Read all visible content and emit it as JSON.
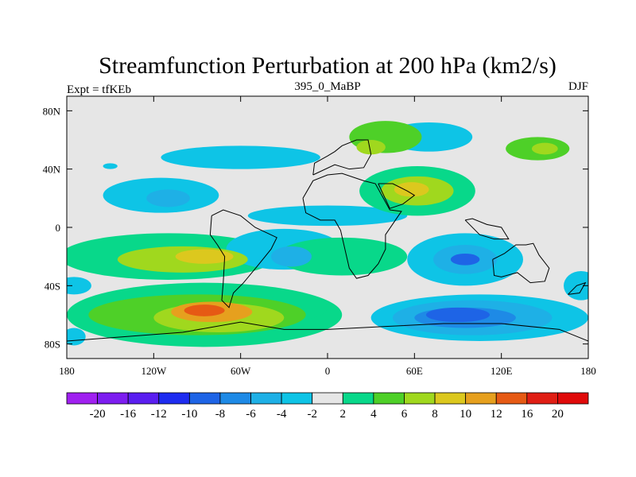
{
  "chart_data": {
    "type": "heatmap",
    "title": "Streamfunction Perturbation at 200 hPa (km2/s)",
    "left_label": "Expt = tfKEb",
    "center_label": "395_0_MaBP",
    "right_label": "DJF",
    "x_ticks": [
      {
        "value": -180,
        "label": "180"
      },
      {
        "value": -120,
        "label": "120W"
      },
      {
        "value": -60,
        "label": "60W"
      },
      {
        "value": 0,
        "label": "0"
      },
      {
        "value": 60,
        "label": "60E"
      },
      {
        "value": 120,
        "label": "120E"
      },
      {
        "value": 180,
        "label": "180"
      }
    ],
    "y_ticks": [
      {
        "value": 80,
        "label": "80N"
      },
      {
        "value": 40,
        "label": "40N"
      },
      {
        "value": 0,
        "label": "0"
      },
      {
        "value": -40,
        "label": "40S"
      },
      {
        "value": -80,
        "label": "80S"
      }
    ],
    "xlim": [
      -180,
      180
    ],
    "ylim": [
      -90,
      90
    ],
    "colorbar": {
      "labels": [
        "-20",
        "-16",
        "-12",
        "-10",
        "-8",
        "-6",
        "-4",
        "-2",
        "2",
        "4",
        "6",
        "8",
        "10",
        "12",
        "16",
        "20"
      ],
      "colors": [
        "#a020f0",
        "#7d1df0",
        "#5a1ef0",
        "#1e2cf0",
        "#1e64e6",
        "#1e8ae6",
        "#1eb0e6",
        "#0ec4e6",
        "#e6e6e6",
        "#08d88a",
        "#4ed028",
        "#a0d81e",
        "#dcc81e",
        "#e6a01e",
        "#e65a14",
        "#e01e14",
        "#e00a0a"
      ]
    },
    "features": [
      {
        "lon": 40,
        "lat": 62,
        "slon": 25,
        "slat": 11,
        "level": 2
      },
      {
        "lon": 30,
        "lat": 55,
        "slon": 10,
        "slat": 5,
        "level": 3
      },
      {
        "lon": 70,
        "lat": 62,
        "slon": 30,
        "slat": 10,
        "level": -1
      },
      {
        "lon": 145,
        "lat": 54,
        "slon": 22,
        "slat": 8,
        "level": 2
      },
      {
        "lon": 150,
        "lat": 54,
        "slon": 9,
        "slat": 4,
        "level": 3
      },
      {
        "lon": -60,
        "lat": 48,
        "slon": 55,
        "slat": 8,
        "level": -1
      },
      {
        "lon": -115,
        "lat": 22,
        "slon": 40,
        "slat": 12,
        "level": -1
      },
      {
        "lon": -110,
        "lat": 20,
        "slon": 15,
        "slat": 6,
        "level": -2
      },
      {
        "lon": 0,
        "lat": 8,
        "slon": 55,
        "slat": 7,
        "level": -1
      },
      {
        "lon": 62,
        "lat": 25,
        "slon": 40,
        "slat": 17,
        "level": 1
      },
      {
        "lon": 62,
        "lat": 25,
        "slon": 25,
        "slat": 10,
        "level": 3
      },
      {
        "lon": 58,
        "lat": 26,
        "slon": 12,
        "slat": 5,
        "level": 4
      },
      {
        "lon": -110,
        "lat": -20,
        "slon": 75,
        "slat": 16,
        "level": 1
      },
      {
        "lon": -100,
        "lat": -22,
        "slon": 45,
        "slat": 9,
        "level": 3
      },
      {
        "lon": -85,
        "lat": -20,
        "slon": 20,
        "slat": 5,
        "level": 4
      },
      {
        "lon": -30,
        "lat": -15,
        "slon": 40,
        "slat": 14,
        "level": -1
      },
      {
        "lon": -25,
        "lat": -20,
        "slon": 14,
        "slat": 7,
        "level": -2
      },
      {
        "lon": 10,
        "lat": -20,
        "slon": 45,
        "slat": 13,
        "level": 1
      },
      {
        "lon": 95,
        "lat": -22,
        "slon": 40,
        "slat": 18,
        "level": -1
      },
      {
        "lon": 95,
        "lat": -22,
        "slon": 22,
        "slat": 10,
        "level": -2
      },
      {
        "lon": 95,
        "lat": -22,
        "slon": 10,
        "slat": 4,
        "level": -4
      },
      {
        "lon": -85,
        "lat": -60,
        "slon": 95,
        "slat": 22,
        "level": 1
      },
      {
        "lon": -90,
        "lat": -60,
        "slon": 75,
        "slat": 14,
        "level": 2
      },
      {
        "lon": -75,
        "lat": -62,
        "slon": 45,
        "slat": 10,
        "level": 3
      },
      {
        "lon": -80,
        "lat": -58,
        "slon": 28,
        "slat": 7,
        "level": 5
      },
      {
        "lon": -85,
        "lat": -57,
        "slon": 14,
        "slat": 4,
        "level": 6
      },
      {
        "lon": -25,
        "lat": -55,
        "slon": 25,
        "slat": 9,
        "level": 1
      },
      {
        "lon": 105,
        "lat": -62,
        "slon": 75,
        "slat": 16,
        "level": -1
      },
      {
        "lon": 100,
        "lat": -62,
        "slon": 55,
        "slat": 12,
        "level": -2
      },
      {
        "lon": 95,
        "lat": -62,
        "slon": 35,
        "slat": 7,
        "level": -3
      },
      {
        "lon": 90,
        "lat": -60,
        "slon": 22,
        "slat": 5,
        "level": -4
      },
      {
        "lon": -175,
        "lat": -40,
        "slon": 12,
        "slat": 6,
        "level": -1
      },
      {
        "lon": -175,
        "lat": -75,
        "slon": 8,
        "slat": 6,
        "level": -1
      },
      {
        "lon": 175,
        "lat": -40,
        "slon": 12,
        "slat": 10,
        "level": -1
      },
      {
        "lon": -150,
        "lat": 42,
        "slon": 5,
        "slat": 2,
        "level": -1
      }
    ]
  }
}
